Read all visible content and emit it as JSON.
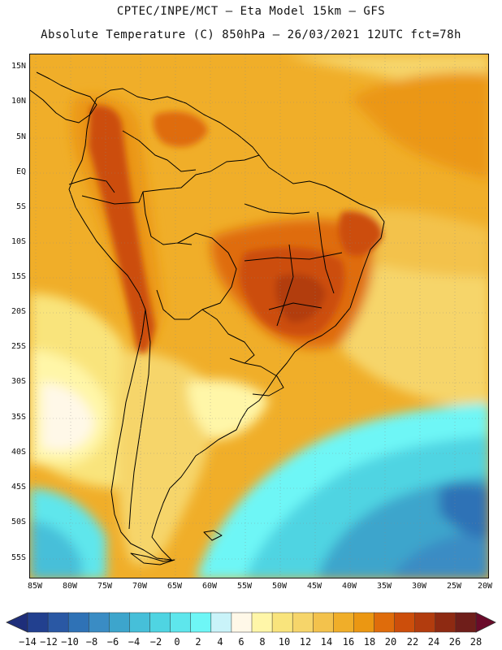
{
  "header": {
    "line1": "CPTEC/INPE/MCT –  Eta Model 15km – GFS",
    "line2": "Absolute Temperature (C) 850hPa – 26/03/2021 12UTC fct=78h"
  },
  "map": {
    "region": "South America",
    "latitude_labels": [
      "15N",
      "10N",
      "5N",
      "EQ",
      "5S",
      "10S",
      "15S",
      "20S",
      "25S",
      "30S",
      "35S",
      "40S",
      "45S",
      "50S",
      "55S"
    ],
    "longitude_labels": [
      "85W",
      "80W",
      "75W",
      "70W",
      "65W",
      "60W",
      "55W",
      "50W",
      "45W",
      "40W",
      "35W",
      "30W",
      "25W",
      "20W"
    ]
  },
  "colorbar": {
    "labels": [
      "−14",
      "−12",
      "−10",
      "−8",
      "−6",
      "−4",
      "−2",
      "0",
      "2",
      "4",
      "6",
      "8",
      "10",
      "12",
      "14",
      "16",
      "18",
      "20",
      "22",
      "24",
      "26",
      "28"
    ],
    "colors": [
      "#22408f",
      "#2a58a4",
      "#2f72b6",
      "#3a8cc4",
      "#3da5cc",
      "#46bfd9",
      "#4fd4e2",
      "#5ee6ec",
      "#6ef6f6",
      "#c9f3f9",
      "#fff8e8",
      "#fff6a8",
      "#f9e47c",
      "#f6d56a",
      "#f3c24c",
      "#f0ae29",
      "#eb9712",
      "#df6c0b",
      "#cc4e0b",
      "#b23c0e",
      "#8e2a12",
      "#6f1e1a"
    ],
    "left_arrow_color": "#1e2e7a",
    "right_arrow_color": "#6a0b2a"
  }
}
